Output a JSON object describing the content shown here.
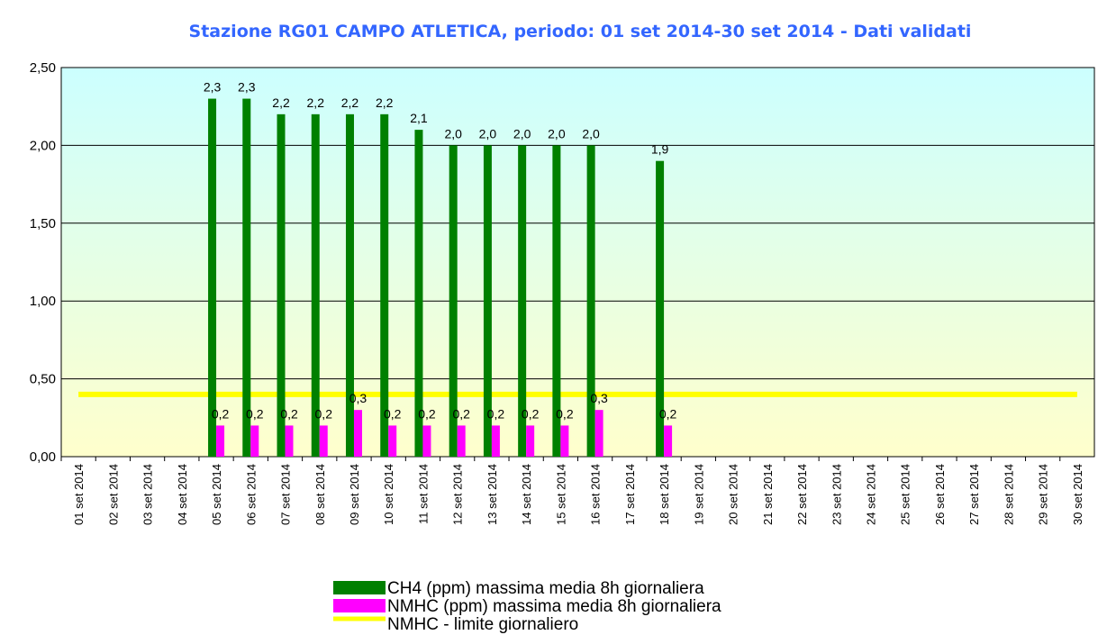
{
  "chart_data": {
    "type": "bar",
    "title": "Stazione RG01 CAMPO ATLETICA, periodo: 01 set 2014-30 set 2014 - Dati validati",
    "categories": [
      "01 set 2014",
      "02 set 2014",
      "03 set 2014",
      "04 set 2014",
      "05 set 2014",
      "06 set 2014",
      "07 set 2014",
      "08 set 2014",
      "09 set 2014",
      "10 set 2014",
      "11 set 2014",
      "12 set 2014",
      "13 set 2014",
      "14 set 2014",
      "15 set 2014",
      "16 set 2014",
      "17 set 2014",
      "18 set 2014",
      "19 set 2014",
      "20 set 2014",
      "21 set 2014",
      "22 set 2014",
      "23 set 2014",
      "24 set 2014",
      "25 set 2014",
      "26 set 2014",
      "27 set 2014",
      "28 set 2014",
      "29 set 2014",
      "30 set 2014"
    ],
    "series": [
      {
        "name": "CH4 (ppm) massima media 8h giornaliera",
        "color": "#008000",
        "type": "bar",
        "values": [
          null,
          null,
          null,
          null,
          2.3,
          2.3,
          2.2,
          2.2,
          2.2,
          2.2,
          2.1,
          2.0,
          2.0,
          2.0,
          2.0,
          2.0,
          null,
          1.9,
          null,
          null,
          null,
          null,
          null,
          null,
          null,
          null,
          null,
          null,
          null,
          null
        ],
        "value_labels": [
          null,
          null,
          null,
          null,
          "2,3",
          "2,3",
          "2,2",
          "2,2",
          "2,2",
          "2,2",
          "2,1",
          "2,0",
          "2,0",
          "2,0",
          "2,0",
          "2,0",
          null,
          "1,9",
          null,
          null,
          null,
          null,
          null,
          null,
          null,
          null,
          null,
          null,
          null,
          null
        ]
      },
      {
        "name": "NMHC (ppm) massima media 8h giornaliera",
        "color": "#ff00ff",
        "type": "bar",
        "values": [
          null,
          null,
          null,
          null,
          0.2,
          0.2,
          0.2,
          0.2,
          0.3,
          0.2,
          0.2,
          0.2,
          0.2,
          0.2,
          0.2,
          0.3,
          null,
          0.2,
          null,
          null,
          null,
          null,
          null,
          null,
          null,
          null,
          null,
          null,
          null,
          null
        ],
        "value_labels": [
          null,
          null,
          null,
          null,
          "0,2",
          "0,2",
          "0,2",
          "0,2",
          "0,3",
          "0,2",
          "0,2",
          "0,2",
          "0,2",
          "0,2",
          "0,2",
          "0,3",
          null,
          "0,2",
          null,
          null,
          null,
          null,
          null,
          null,
          null,
          null,
          null,
          null,
          null,
          null
        ]
      },
      {
        "name": "NMHC - limite giornaliero",
        "color": "#ffff00",
        "type": "line",
        "values": [
          0.4,
          0.4,
          0.4,
          0.4,
          0.4,
          0.4,
          0.4,
          0.4,
          0.4,
          0.4,
          0.4,
          0.4,
          0.4,
          0.4,
          0.4,
          0.4,
          0.4,
          0.4,
          0.4,
          0.4,
          0.4,
          0.4,
          0.4,
          0.4,
          0.4,
          0.4,
          0.4,
          0.4,
          0.4,
          0.4
        ]
      }
    ],
    "ylim": [
      0,
      2.5
    ],
    "yticks": [
      {
        "value": 0,
        "label": "0,00"
      },
      {
        "value": 0.5,
        "label": "0,50"
      },
      {
        "value": 1,
        "label": "1,00"
      },
      {
        "value": 1.5,
        "label": "1,50"
      },
      {
        "value": 2,
        "label": "2,00"
      },
      {
        "value": 2.5,
        "label": "2,50"
      }
    ],
    "grid": true
  }
}
